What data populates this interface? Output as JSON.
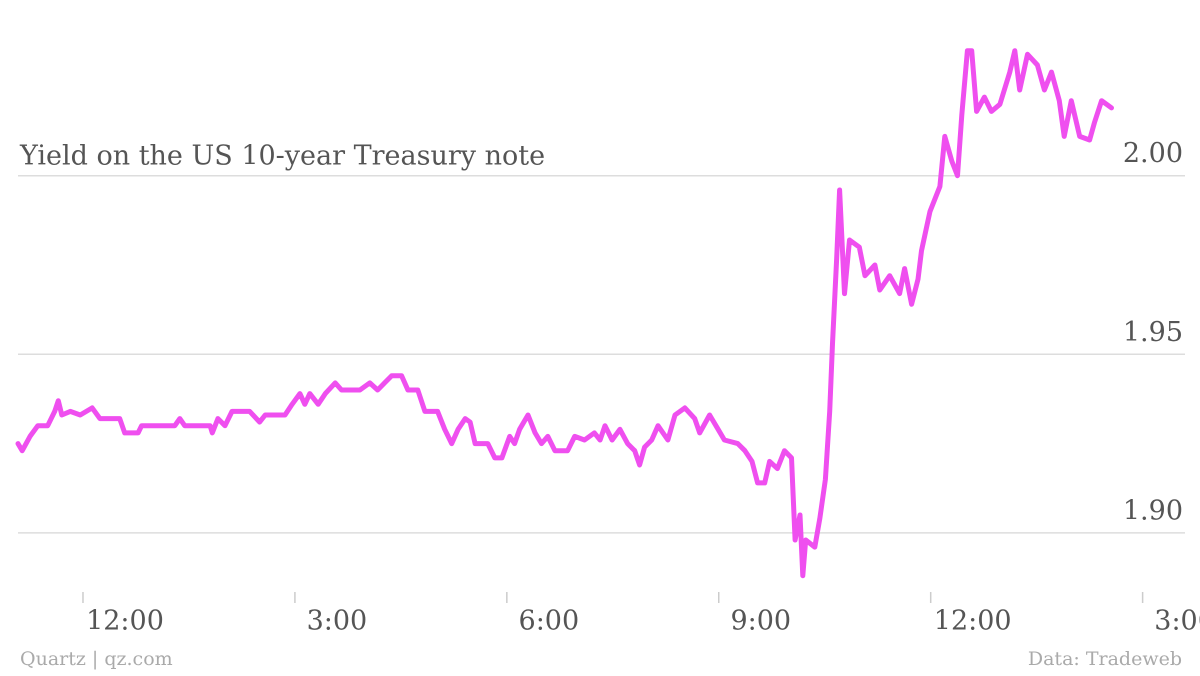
{
  "chart_data": {
    "type": "line",
    "title": "Yield on the US 10-year Treasury note",
    "source_left": "Quartz | qz.com",
    "source_right": "Data: Tradeweb",
    "x": [
      -0.92,
      -0.86,
      -0.75,
      -0.64,
      -0.5,
      -0.4,
      -0.35,
      -0.3,
      -0.18,
      -0.04,
      0.13,
      0.24,
      0.52,
      0.59,
      0.78,
      0.83,
      1.3,
      1.37,
      1.44,
      1.8,
      1.83,
      1.91,
      2.01,
      2.11,
      2.36,
      2.5,
      2.58,
      2.86,
      2.96,
      3.07,
      3.14,
      3.21,
      3.33,
      3.43,
      3.57,
      3.66,
      3.92,
      4.06,
      4.17,
      4.27,
      4.37,
      4.51,
      4.6,
      4.74,
      4.84,
      5.02,
      5.12,
      5.22,
      5.31,
      5.41,
      5.48,
      5.55,
      5.73,
      5.83,
      5.93,
      6.04,
      6.11,
      6.18,
      6.3,
      6.4,
      6.49,
      6.58,
      6.68,
      6.86,
      6.96,
      7.1,
      7.24,
      7.32,
      7.39,
      7.49,
      7.6,
      7.71,
      7.81,
      7.88,
      7.95,
      8.05,
      8.14,
      8.28,
      8.38,
      8.52,
      8.66,
      8.73,
      8.87,
      8.99,
      9.08,
      9.27,
      9.37,
      9.47,
      9.55,
      9.65,
      9.72,
      9.83,
      9.93,
      10.03,
      10.08,
      10.15,
      10.19,
      10.23,
      10.36,
      10.43,
      10.51,
      10.57,
      10.61,
      10.67,
      10.71,
      10.78,
      10.85,
      10.99,
      11.07,
      11.21,
      11.28,
      11.42,
      11.56,
      11.63,
      11.73,
      11.82,
      11.87,
      11.99,
      12.13,
      12.2,
      12.3,
      12.38,
      12.44,
      12.52,
      12.58,
      12.65,
      12.76,
      12.86,
      12.98,
      13.12,
      13.19,
      13.26,
      13.37,
      13.51,
      13.61,
      13.71,
      13.82,
      13.89,
      13.99,
      14.11,
      14.25,
      14.32,
      14.42,
      14.56
    ],
    "series": [
      {
        "color": "#ef4fef",
        "values": [
          1.925,
          1.923,
          1.927,
          1.93,
          1.93,
          1.934,
          1.937,
          1.933,
          1.934,
          1.933,
          1.935,
          1.932,
          1.932,
          1.928,
          1.928,
          1.93,
          1.93,
          1.932,
          1.93,
          1.93,
          1.928,
          1.932,
          1.93,
          1.934,
          1.934,
          1.931,
          1.933,
          1.933,
          1.936,
          1.939,
          1.936,
          1.939,
          1.936,
          1.939,
          1.942,
          1.94,
          1.94,
          1.942,
          1.94,
          1.942,
          1.944,
          1.944,
          1.94,
          1.94,
          1.934,
          1.934,
          1.929,
          1.925,
          1.929,
          1.932,
          1.931,
          1.925,
          1.925,
          1.921,
          1.921,
          1.927,
          1.925,
          1.929,
          1.933,
          1.928,
          1.925,
          1.927,
          1.923,
          1.923,
          1.927,
          1.926,
          1.928,
          1.926,
          1.93,
          1.926,
          1.929,
          1.925,
          1.923,
          1.919,
          1.924,
          1.926,
          1.93,
          1.926,
          1.933,
          1.935,
          1.932,
          1.928,
          1.933,
          1.929,
          1.926,
          1.925,
          1.923,
          1.92,
          1.914,
          1.914,
          1.92,
          1.918,
          1.923,
          1.921,
          1.898,
          1.905,
          1.888,
          1.898,
          1.896,
          1.904,
          1.915,
          1.934,
          1.953,
          1.977,
          1.996,
          1.967,
          1.982,
          1.98,
          1.972,
          1.975,
          1.968,
          1.972,
          1.967,
          1.974,
          1.964,
          1.971,
          1.979,
          1.99,
          1.997,
          2.011,
          2.004,
          2.0,
          2.017,
          2.035,
          2.035,
          2.018,
          2.022,
          2.018,
          2.02,
          2.029,
          2.035,
          2.024,
          2.034,
          2.031,
          2.024,
          2.029,
          2.021,
          2.011,
          2.021,
          2.011,
          2.01,
          2.015,
          2.021,
          2.019
        ]
      }
    ],
    "xlim": [
      -0.92,
      15.6
    ],
    "xticks": [
      {
        "value": 0,
        "label": "12:00"
      },
      {
        "value": 3,
        "label": "3:00"
      },
      {
        "value": 6,
        "label": "6:00"
      },
      {
        "value": 9,
        "label": "9:00"
      },
      {
        "value": 12,
        "label": "12:00"
      },
      {
        "value": 15,
        "label": "3:00"
      }
    ],
    "ylim": [
      1.884,
      2.038
    ],
    "yticks": [
      {
        "value": 1.9,
        "label": "1.90"
      },
      1.95,
      {
        "value": 2,
        "label": "2.00"
      }
    ],
    "grid": true
  }
}
